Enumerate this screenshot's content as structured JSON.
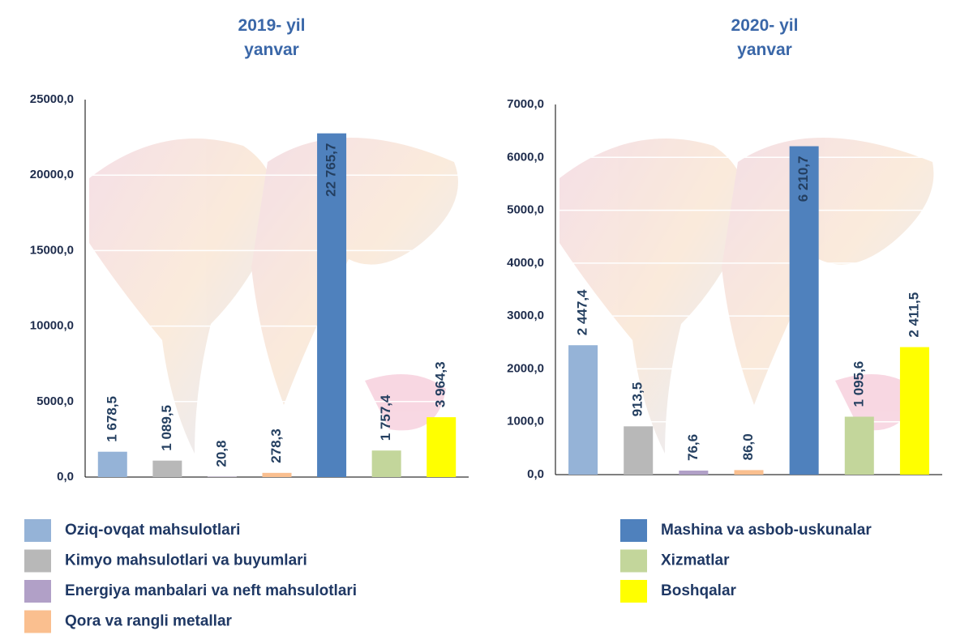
{
  "charts": [
    {
      "chart_data": {
        "type": "bar",
        "title": "2019- yil\nyanvar",
        "values": [
          1678.5,
          1089.5,
          20.8,
          278.3,
          22765.7,
          1757.4,
          3964.3
        ],
        "value_labels": [
          "1 678,5",
          "1 089,5",
          "20,8",
          "278,3",
          "22 765,7",
          "1 757,4",
          "3 964,3"
        ],
        "ylim": [
          0,
          25000
        ],
        "yticks": [
          {
            "value": 0,
            "label": "0,0"
          },
          {
            "value": 5000,
            "label": "5000,0"
          },
          {
            "value": 10000,
            "label": "10000,0"
          },
          {
            "value": 15000,
            "label": "15000,0"
          },
          {
            "value": 20000,
            "label": "20000,0"
          },
          {
            "value": 25000,
            "label": "25000,0"
          }
        ],
        "grid": true
      }
    },
    {
      "chart_data": {
        "type": "bar",
        "title": "2020- yil\nyanvar",
        "values": [
          2447.4,
          913.5,
          76.6,
          86.0,
          6210.7,
          1095.6,
          2411.5
        ],
        "value_labels": [
          "2 447,4",
          "913,5",
          "76,6",
          "86,0",
          "6 210,7",
          "1 095,6",
          "2 411,5"
        ],
        "ylim": [
          0,
          7000
        ],
        "yticks": [
          {
            "value": 0,
            "label": "0,0"
          },
          {
            "value": 1000,
            "label": "1000,0"
          },
          {
            "value": 2000,
            "label": "2000,0"
          },
          {
            "value": 3000,
            "label": "3000,0"
          },
          {
            "value": 4000,
            "label": "4000,0"
          },
          {
            "value": 5000,
            "label": "5000,0"
          },
          {
            "value": 6000,
            "label": "6000,0"
          },
          {
            "value": 7000,
            "label": "7000,0"
          }
        ],
        "grid": true
      }
    }
  ],
  "legend": [
    {
      "name": "Oziq-ovqat mahsulotlari",
      "color": "#95b3d7"
    },
    {
      "name": "Kimyo mahsulotlari va buyumlari",
      "color": "#b8b8b8"
    },
    {
      "name": "Energiya manbalari va neft mahsulotlari",
      "color": "#b1a0c7"
    },
    {
      "name": "Qora va rangli metallar",
      "color": "#fabf8f"
    },
    {
      "name": "Mashina va asbob-uskunalar",
      "color": "#4f81bd"
    },
    {
      "name": "Xizmatlar",
      "color": "#c3d69b"
    },
    {
      "name": "Boshqalar",
      "color": "#ffff00"
    }
  ]
}
